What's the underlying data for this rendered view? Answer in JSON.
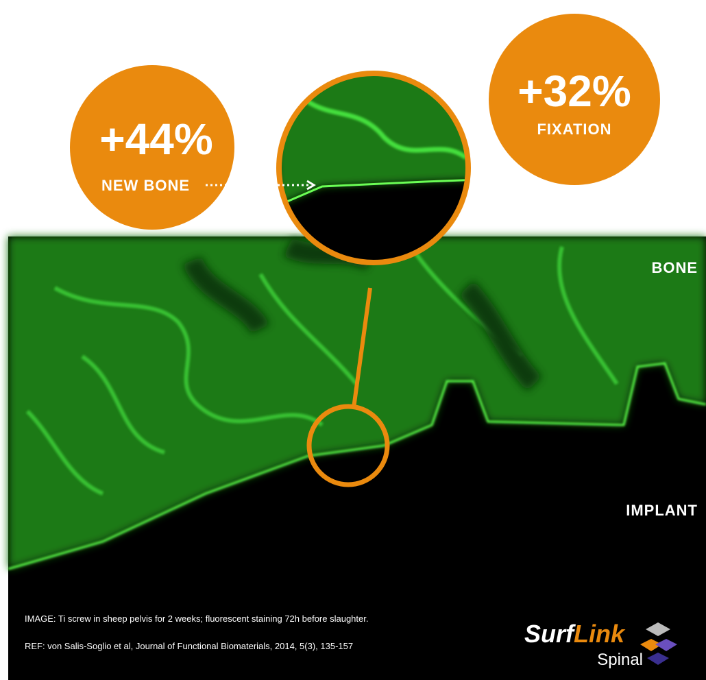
{
  "stats": [
    {
      "value": "+44%",
      "label": "NEW BONE"
    },
    {
      "value": "+32%",
      "label": "FIXATION"
    }
  ],
  "regions": {
    "top": "BONE",
    "bottom": "IMPLANT"
  },
  "caption": {
    "image": "IMAGE: Ti screw in sheep pelvis for 2 weeks; fluorescent staining 72h before slaughter.",
    "ref": "REF: von Salis-Soglio et al, Journal of Functional Biomaterials, 2014, 5(3), 135-157"
  },
  "logo": {
    "brand_a": "Surf",
    "brand_b": "Link",
    "sub": "Spinal"
  }
}
